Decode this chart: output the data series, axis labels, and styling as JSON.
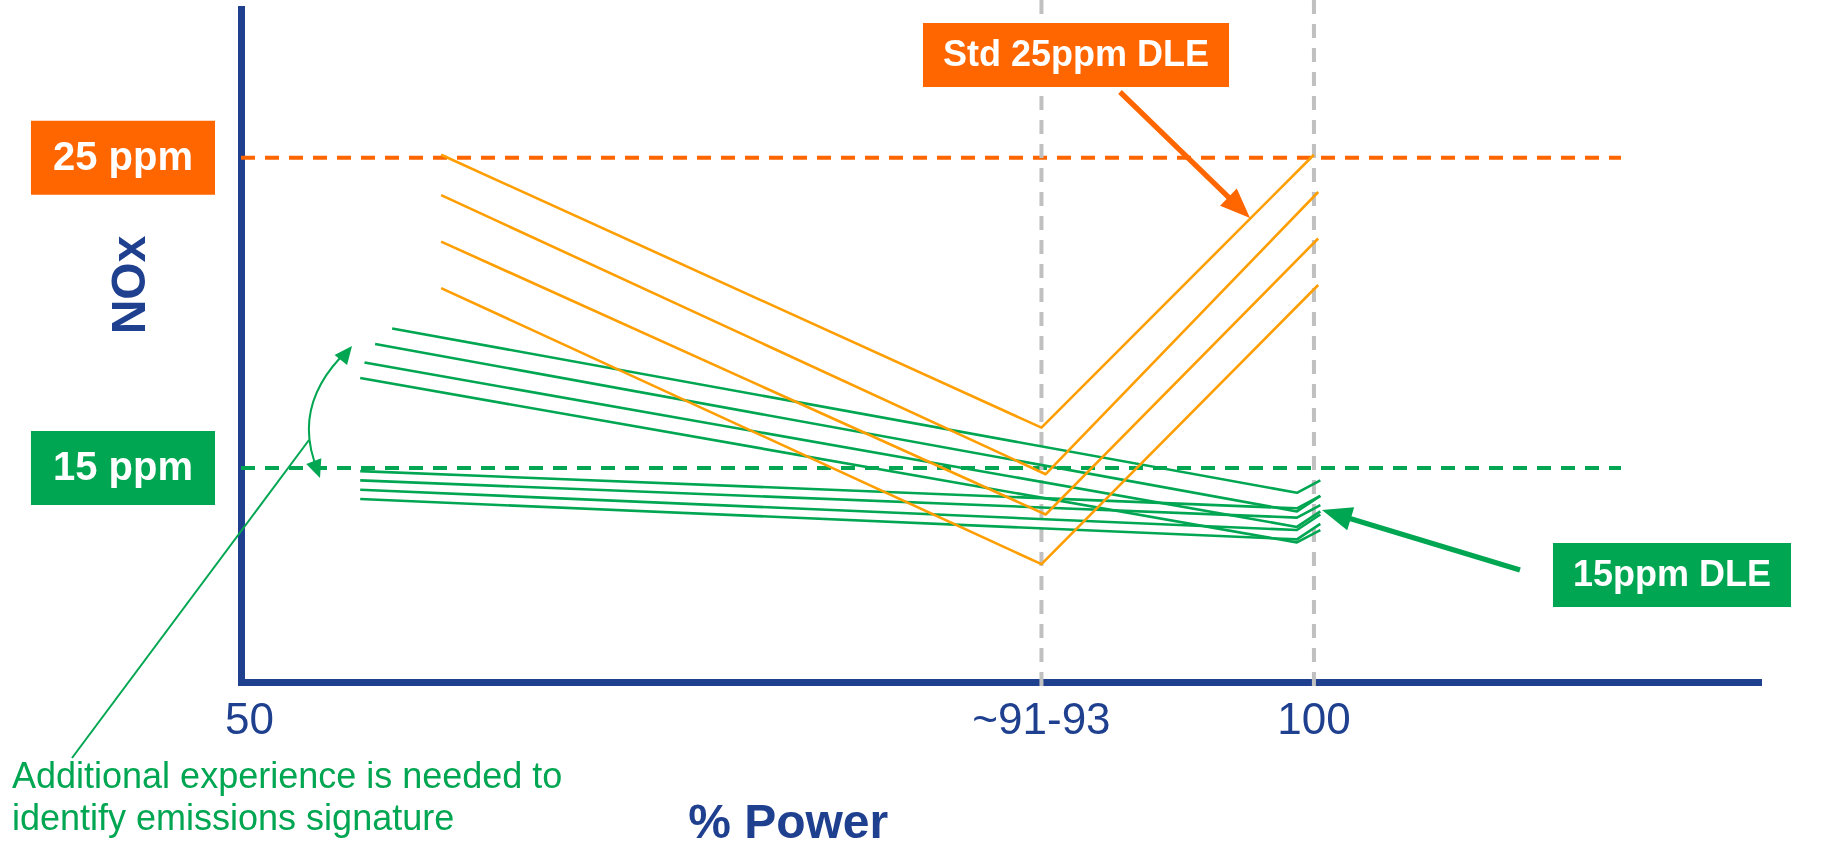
{
  "chart_data": {
    "type": "line",
    "xlabel": "% Power",
    "ylabel": "NOx",
    "xlim": [
      49.6,
      121
    ],
    "xticks": [
      50,
      {
        "value": 87.2,
        "label": "~91-93"
      },
      100
    ],
    "ylim": [
      8.1,
      29.8
    ],
    "yticks": [
      {
        "value": 15,
        "label": "15 ppm"
      },
      {
        "value": 25,
        "label": "25 ppm"
      }
    ],
    "grid": false,
    "legend": false,
    "marker": "none",
    "line_style": "solid",
    "ref_lines": [
      {
        "axis": "y",
        "value": 25,
        "color": "#ff6600",
        "line_style": "dashed"
      },
      {
        "axis": "y",
        "value": 15,
        "color": "#00a651",
        "line_style": "dashed"
      },
      {
        "axis": "x",
        "value": 87.2,
        "color": "#c0c0c0",
        "line_style": "dashed"
      },
      {
        "axis": "x",
        "value": 100,
        "color": "#c0c0c0",
        "line_style": "dashed"
      }
    ],
    "annotations": [
      "Std 25ppm DLE",
      "15ppm DLE",
      "Additional experience is needed to identify emissions signature"
    ],
    "series": [
      {
        "color": "#ff9e00",
        "x": [
          59.0,
          87.2,
          100.0
        ],
        "values": [
          25.1,
          16.3,
          25.1
        ]
      },
      {
        "color": "#ff9e00",
        "x": [
          59.0,
          87.4,
          100.2
        ],
        "values": [
          23.8,
          14.8,
          23.9
        ]
      },
      {
        "color": "#ff9e00",
        "x": [
          59.0,
          87.4,
          100.2
        ],
        "values": [
          22.3,
          13.5,
          22.4
        ]
      },
      {
        "color": "#ff9e00",
        "x": [
          59.0,
          87.2,
          100.2
        ],
        "values": [
          20.8,
          11.9,
          20.9
        ]
      },
      {
        "color": "#00a651",
        "x": [
          56.7,
          99.2,
          100.3
        ],
        "values": [
          19.5,
          14.2,
          14.6
        ]
      },
      {
        "color": "#00a651",
        "x": [
          55.9,
          99.2,
          100.3
        ],
        "values": [
          19.0,
          13.6,
          14.1
        ]
      },
      {
        "color": "#00a651",
        "x": [
          55.4,
          99.2,
          100.3
        ],
        "values": [
          18.4,
          13.1,
          13.6
        ]
      },
      {
        "color": "#00a651",
        "x": [
          55.2,
          99.2,
          100.3
        ],
        "values": [
          17.9,
          12.6,
          13.0
        ]
      },
      {
        "color": "#00a651",
        "x": [
          55.2,
          99.2,
          100.3
        ],
        "values": [
          14.9,
          13.7,
          14.1
        ]
      },
      {
        "color": "#00a651",
        "x": [
          55.2,
          99.2,
          100.3
        ],
        "values": [
          14.6,
          13.4,
          13.8
        ]
      },
      {
        "color": "#00a651",
        "x": [
          55.2,
          99.2,
          100.3
        ],
        "values": [
          14.3,
          13.0,
          13.5
        ]
      },
      {
        "color": "#00a651",
        "x": [
          55.2,
          99.2,
          100.3
        ],
        "values": [
          14.0,
          12.7,
          13.2
        ]
      }
    ]
  }
}
